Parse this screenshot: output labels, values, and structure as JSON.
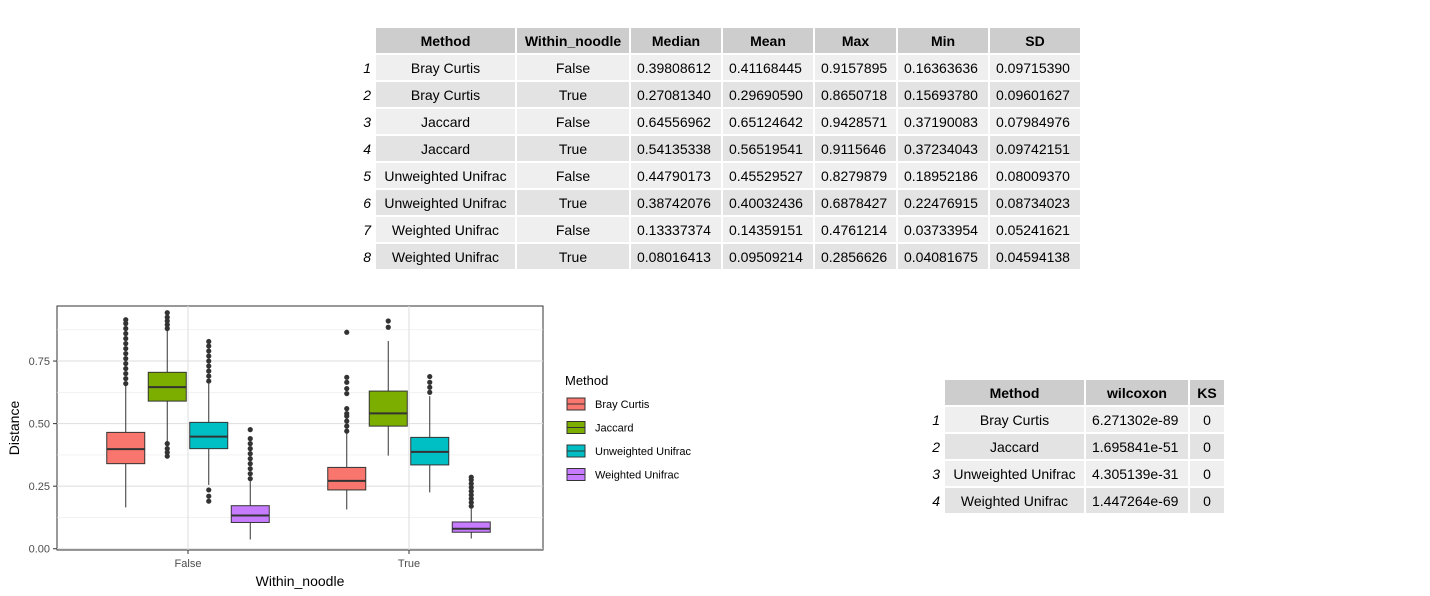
{
  "stats_table": {
    "headers": [
      "Method",
      "Within_noodle",
      "Median",
      "Mean",
      "Max",
      "Min",
      "SD"
    ],
    "rows": [
      {
        "rn": "1",
        "method": "Bray Curtis",
        "within": "False",
        "median": "0.39808612",
        "mean": "0.41168445",
        "max": "0.9157895",
        "min": "0.16363636",
        "sd": "0.09715390"
      },
      {
        "rn": "2",
        "method": "Bray Curtis",
        "within": "True",
        "median": "0.27081340",
        "mean": "0.29690590",
        "max": "0.8650718",
        "min": "0.15693780",
        "sd": "0.09601627"
      },
      {
        "rn": "3",
        "method": "Jaccard",
        "within": "False",
        "median": "0.64556962",
        "mean": "0.65124642",
        "max": "0.9428571",
        "min": "0.37190083",
        "sd": "0.07984976"
      },
      {
        "rn": "4",
        "method": "Jaccard",
        "within": "True",
        "median": "0.54135338",
        "mean": "0.56519541",
        "max": "0.9115646",
        "min": "0.37234043",
        "sd": "0.09742151"
      },
      {
        "rn": "5",
        "method": "Unweighted Unifrac",
        "within": "False",
        "median": "0.44790173",
        "mean": "0.45529527",
        "max": "0.8279879",
        "min": "0.18952186",
        "sd": "0.08009370"
      },
      {
        "rn": "6",
        "method": "Unweighted Unifrac",
        "within": "True",
        "median": "0.38742076",
        "mean": "0.40032436",
        "max": "0.6878427",
        "min": "0.22476915",
        "sd": "0.08734023"
      },
      {
        "rn": "7",
        "method": "Weighted Unifrac",
        "within": "False",
        "median": "0.13337374",
        "mean": "0.14359151",
        "max": "0.4761214",
        "min": "0.03733954",
        "sd": "0.05241621"
      },
      {
        "rn": "8",
        "method": "Weighted Unifrac",
        "within": "True",
        "median": "0.08016413",
        "mean": "0.09509214",
        "max": "0.2856626",
        "min": "0.04081675",
        "sd": "0.04594138"
      }
    ]
  },
  "test_table": {
    "headers": [
      "Method",
      "wilcoxon",
      "KS"
    ],
    "rows": [
      {
        "rn": "1",
        "method": "Bray Curtis",
        "wilcoxon": "6.271302e-89",
        "ks": "0"
      },
      {
        "rn": "2",
        "method": "Jaccard",
        "wilcoxon": "1.695841e-51",
        "ks": "0"
      },
      {
        "rn": "3",
        "method": "Unweighted Unifrac",
        "wilcoxon": "4.305139e-31",
        "ks": "0"
      },
      {
        "rn": "4",
        "method": "Weighted Unifrac",
        "wilcoxon": "1.447264e-69",
        "ks": "0"
      }
    ]
  },
  "chart_data": {
    "type": "boxplot",
    "xlabel": "Within_noodle",
    "ylabel": "Distance",
    "categories": [
      "False",
      "True"
    ],
    "ylim": [
      -0.005,
      0.97
    ],
    "yticks": [
      0.0,
      0.25,
      0.5,
      0.75
    ],
    "ytick_labels": [
      "0.00",
      "0.25",
      "0.50",
      "0.75"
    ],
    "grid": true,
    "legend": {
      "title": "Method",
      "position": "right"
    },
    "series": [
      {
        "name": "Bray Curtis",
        "color": "#F8766D",
        "boxes": [
          {
            "category": "False",
            "whisker_low": 0.165,
            "q1": 0.34,
            "median": 0.398,
            "q3": 0.465,
            "whisker_high": 0.655,
            "outliers": [
              0.66,
              0.68,
              0.7,
              0.72,
              0.74,
              0.76,
              0.78,
              0.8,
              0.82,
              0.84,
              0.86,
              0.88,
              0.9,
              0.915
            ]
          },
          {
            "category": "True",
            "whisker_low": 0.157,
            "q1": 0.235,
            "median": 0.271,
            "q3": 0.325,
            "whisker_high": 0.46,
            "outliers": [
              0.47,
              0.49,
              0.51,
              0.53,
              0.54,
              0.56,
              0.62,
              0.64,
              0.665,
              0.685,
              0.865
            ]
          }
        ]
      },
      {
        "name": "Jaccard",
        "color": "#7CAE00",
        "boxes": [
          {
            "category": "False",
            "whisker_low": 0.372,
            "q1": 0.59,
            "median": 0.646,
            "q3": 0.705,
            "whisker_high": 0.875,
            "outliers": [
              0.88,
              0.895,
              0.91,
              0.925,
              0.943,
              0.37,
              0.385,
              0.4,
              0.42
            ]
          },
          {
            "category": "True",
            "whisker_low": 0.372,
            "q1": 0.49,
            "median": 0.541,
            "q3": 0.63,
            "whisker_high": 0.83,
            "outliers": [
              0.885,
              0.91
            ]
          }
        ]
      },
      {
        "name": "Unweighted Unifrac",
        "color": "#00BFC4",
        "boxes": [
          {
            "category": "False",
            "whisker_low": 0.255,
            "q1": 0.4,
            "median": 0.448,
            "q3": 0.505,
            "whisker_high": 0.66,
            "outliers": [
              0.67,
              0.69,
              0.71,
              0.73,
              0.75,
              0.77,
              0.79,
              0.81,
              0.828,
              0.19,
              0.21,
              0.235
            ]
          },
          {
            "category": "True",
            "whisker_low": 0.225,
            "q1": 0.335,
            "median": 0.387,
            "q3": 0.445,
            "whisker_high": 0.61,
            "outliers": [
              0.625,
              0.645,
              0.665,
              0.688
            ]
          }
        ]
      },
      {
        "name": "Weighted Unifrac",
        "color": "#C77CFF",
        "boxes": [
          {
            "category": "False",
            "whisker_low": 0.037,
            "q1": 0.105,
            "median": 0.133,
            "q3": 0.172,
            "whisker_high": 0.27,
            "outliers": [
              0.28,
              0.3,
              0.32,
              0.34,
              0.36,
              0.38,
              0.4,
              0.42,
              0.44,
              0.476
            ]
          },
          {
            "category": "True",
            "whisker_low": 0.041,
            "q1": 0.066,
            "median": 0.08,
            "q3": 0.107,
            "whisker_high": 0.16,
            "outliers": [
              0.17,
              0.185,
              0.2,
              0.215,
              0.23,
              0.245,
              0.26,
              0.275,
              0.286
            ]
          }
        ]
      }
    ]
  }
}
